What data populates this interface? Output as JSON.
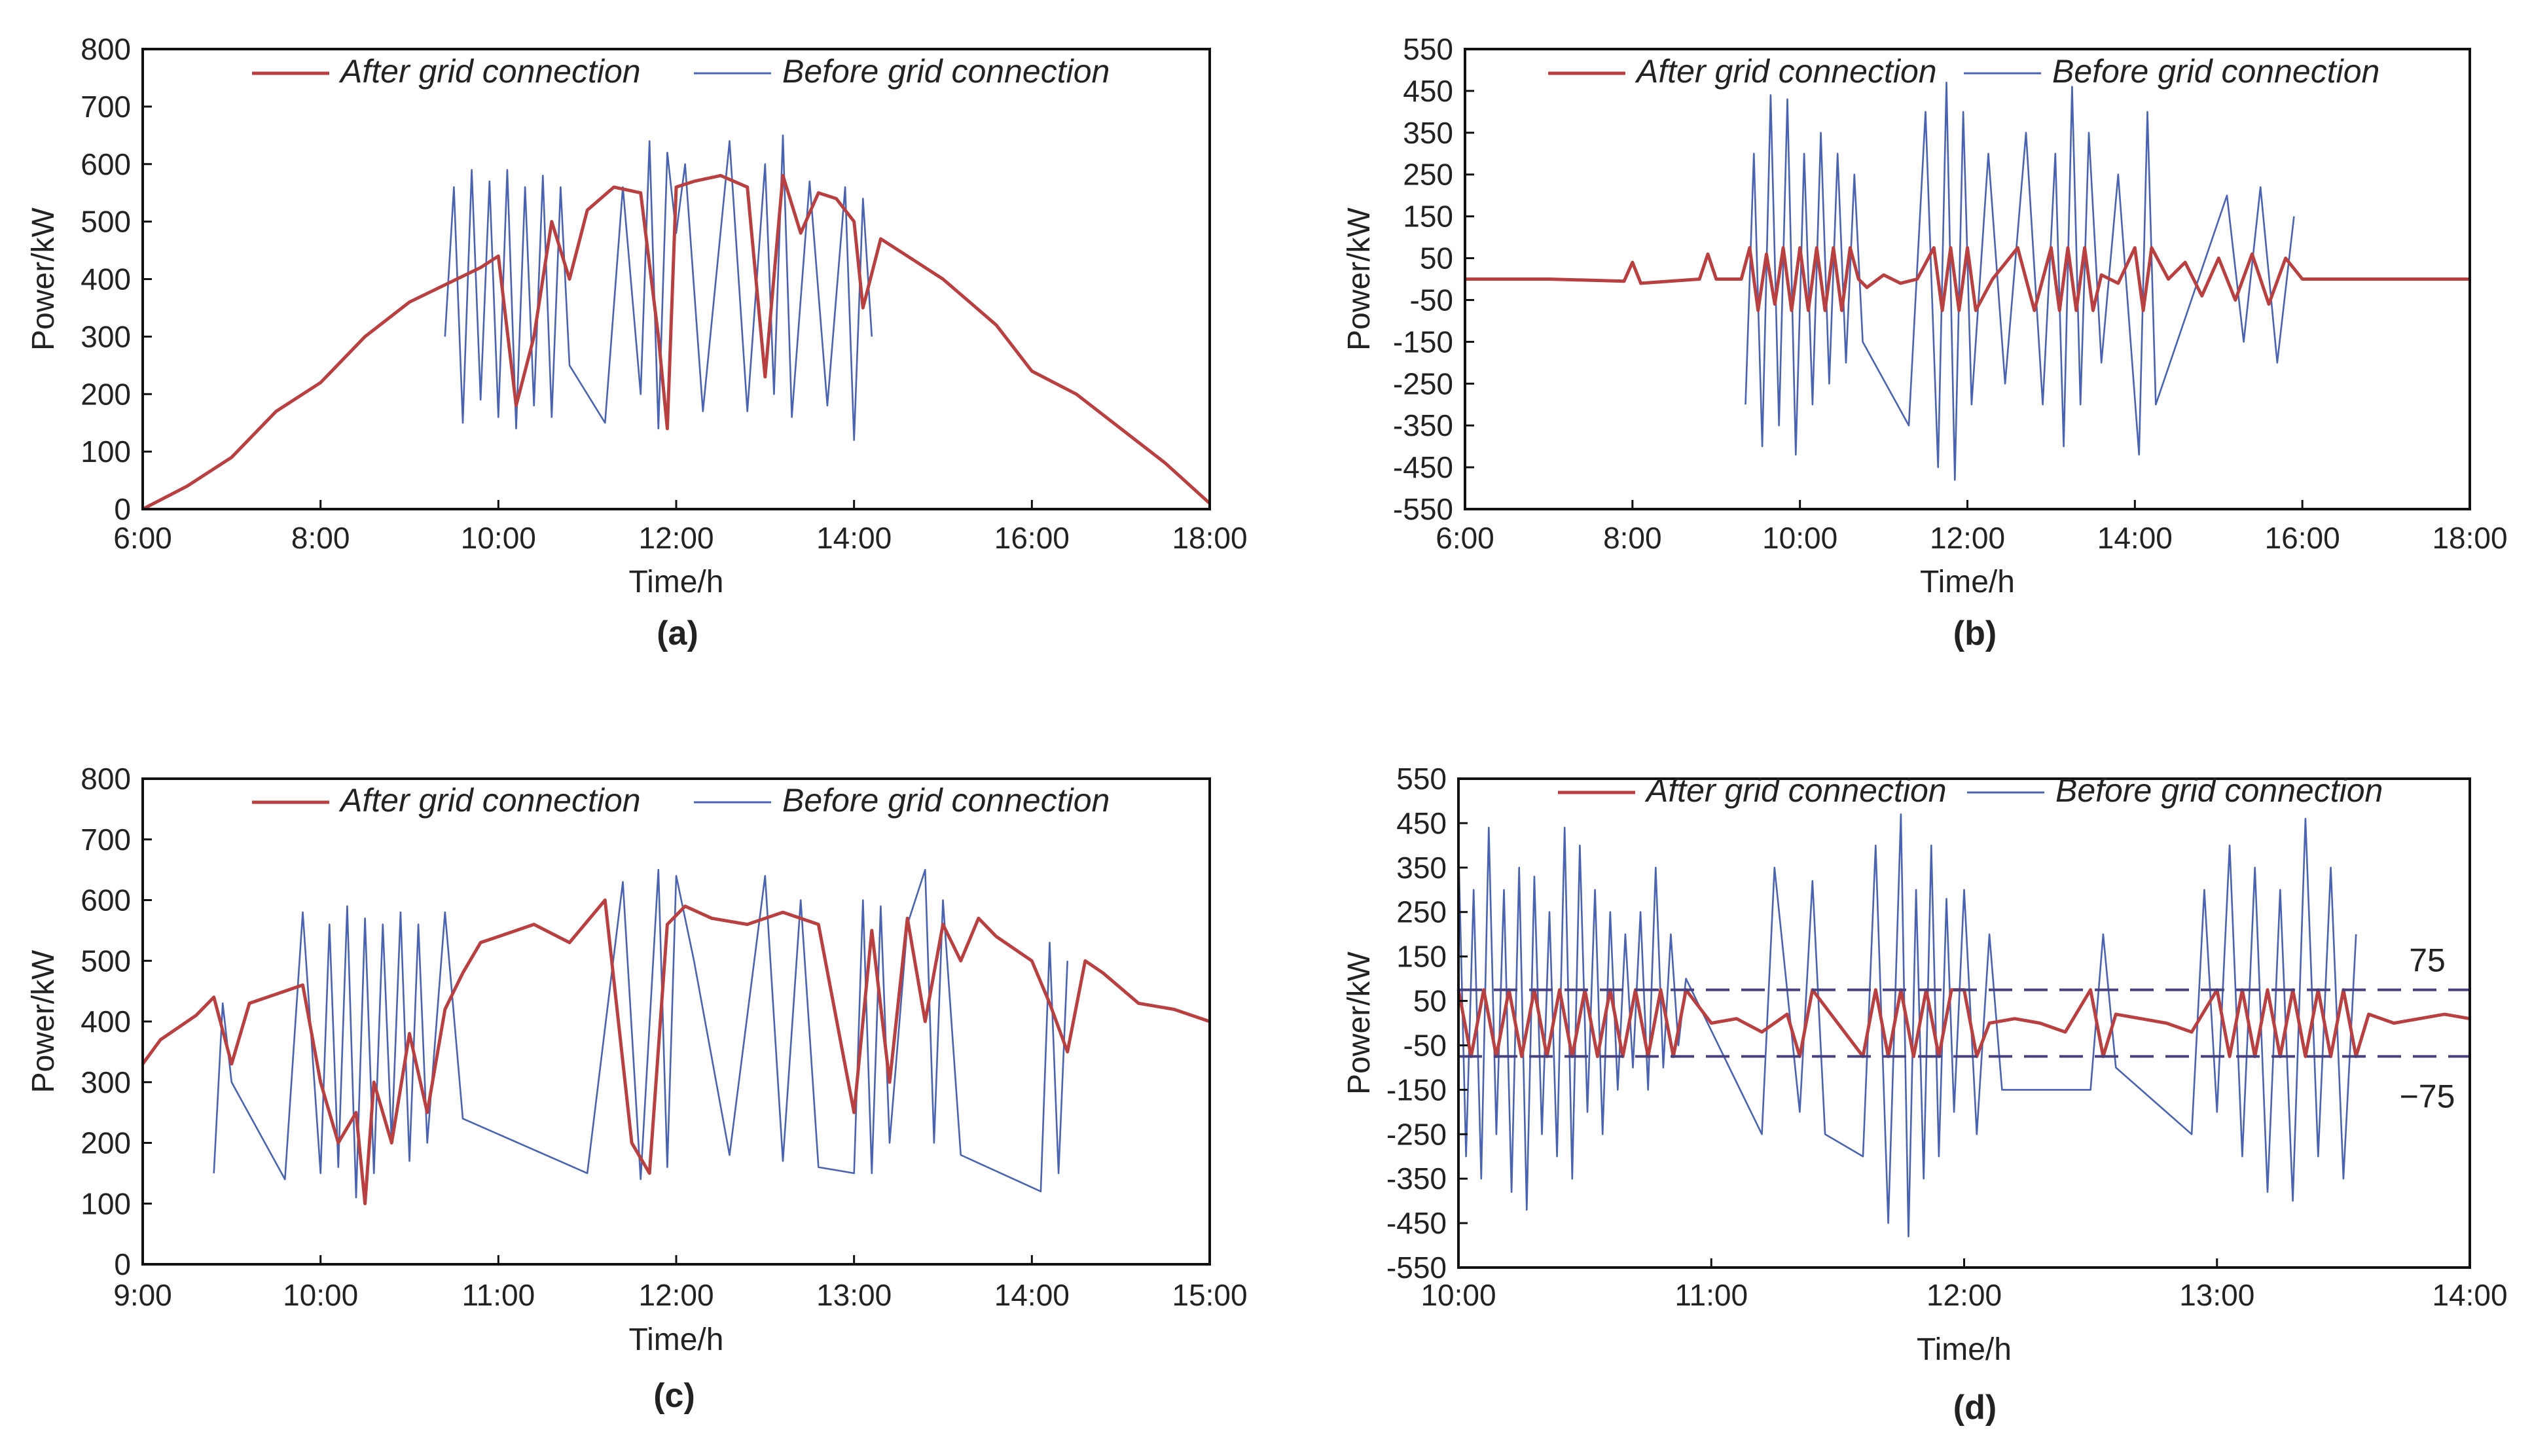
{
  "colors": {
    "after": "#b84040",
    "before": "#4a63b0",
    "reference": "#46417e",
    "axis": "#111111"
  },
  "chart_data": [
    {
      "panel_label": "(a)",
      "type": "line",
      "xlabel": "Time/h",
      "ylabel": "Power/kW",
      "x_range_hours": [
        6,
        18
      ],
      "xticks": [
        6,
        8,
        10,
        12,
        14,
        16,
        18
      ],
      "xtick_labels": [
        "6:00",
        "8:00",
        "10:00",
        "12:00",
        "14:00",
        "16:00",
        "18:00"
      ],
      "ylim": [
        0,
        800
      ],
      "yticks": [
        0,
        100,
        200,
        300,
        400,
        500,
        600,
        700,
        800
      ],
      "ytick_labels": [
        "0",
        "100",
        "200",
        "300",
        "400",
        "500",
        "600",
        "700",
        "800"
      ],
      "legend": [
        "After grid connection",
        "Before grid connection"
      ],
      "legend_position": "top",
      "series": [
        {
          "name": "After grid connection",
          "x": [
            6,
            6.5,
            7,
            7.5,
            8,
            8.5,
            9,
            9.4,
            9.8,
            10.0,
            10.2,
            10.4,
            10.6,
            10.8,
            11.0,
            11.3,
            11.6,
            11.8,
            11.9,
            12.0,
            12.2,
            12.5,
            12.8,
            13.0,
            13.2,
            13.4,
            13.6,
            13.8,
            14.0,
            14.1,
            14.3,
            14.6,
            15.0,
            15.3,
            15.6,
            16.0,
            16.5,
            17.0,
            17.5,
            18.0
          ],
          "values": [
            0,
            40,
            90,
            170,
            220,
            300,
            360,
            390,
            420,
            440,
            180,
            300,
            500,
            400,
            520,
            560,
            550,
            300,
            140,
            560,
            570,
            580,
            560,
            230,
            580,
            480,
            550,
            540,
            500,
            350,
            470,
            440,
            400,
            360,
            320,
            240,
            200,
            140,
            80,
            10
          ]
        },
        {
          "name": "Before grid connection",
          "x": [
            9.4,
            9.5,
            9.6,
            9.7,
            9.8,
            9.9,
            10.0,
            10.1,
            10.2,
            10.3,
            10.4,
            10.5,
            10.6,
            10.7,
            10.8,
            11.2,
            11.4,
            11.6,
            11.7,
            11.8,
            11.9,
            12.0,
            12.1,
            12.3,
            12.6,
            12.8,
            13.0,
            13.1,
            13.2,
            13.3,
            13.5,
            13.7,
            13.9,
            14.0,
            14.1,
            14.2
          ],
          "values": [
            300,
            560,
            150,
            590,
            190,
            570,
            160,
            590,
            140,
            560,
            180,
            580,
            160,
            560,
            250,
            150,
            560,
            200,
            640,
            140,
            620,
            480,
            600,
            170,
            640,
            170,
            600,
            200,
            650,
            160,
            570,
            180,
            560,
            120,
            540,
            300
          ]
        }
      ]
    },
    {
      "panel_label": "(b)",
      "type": "line",
      "xlabel": "Time/h",
      "ylabel": "Power/kW",
      "x_range_hours": [
        6,
        18
      ],
      "xticks": [
        6,
        8,
        10,
        12,
        14,
        16,
        18
      ],
      "xtick_labels": [
        "6:00",
        "8:00",
        "10:00",
        "12:00",
        "14:00",
        "16:00",
        "18:00"
      ],
      "ylim": [
        -550,
        550
      ],
      "yticks": [
        -550,
        -450,
        -350,
        -250,
        -150,
        -50,
        50,
        150,
        250,
        350,
        450,
        550
      ],
      "ytick_labels": [
        "-550",
        "-450",
        "-350",
        "-250",
        "-150",
        "-50",
        "50",
        "150",
        "250",
        "350",
        "450",
        "550"
      ],
      "legend": [
        "After grid connection",
        "Before grid connection"
      ],
      "legend_position": "top",
      "series": [
        {
          "name": "After grid connection",
          "x": [
            6,
            7,
            7.9,
            8.0,
            8.1,
            8.8,
            8.9,
            9.0,
            9.3,
            9.4,
            9.5,
            9.6,
            9.7,
            9.8,
            9.9,
            10.0,
            10.1,
            10.2,
            10.3,
            10.4,
            10.5,
            10.6,
            10.7,
            10.8,
            11.0,
            11.2,
            11.4,
            11.6,
            11.7,
            11.8,
            11.9,
            12.0,
            12.1,
            12.3,
            12.6,
            12.8,
            13.0,
            13.1,
            13.2,
            13.3,
            13.4,
            13.5,
            13.6,
            13.8,
            14.0,
            14.1,
            14.2,
            14.4,
            14.6,
            14.8,
            15.0,
            15.2,
            15.4,
            15.6,
            15.8,
            16.0,
            16.5,
            17,
            18
          ],
          "values": [
            0,
            0,
            -5,
            40,
            -10,
            0,
            60,
            0,
            0,
            75,
            -75,
            60,
            -60,
            75,
            -75,
            75,
            -75,
            75,
            -75,
            75,
            -75,
            75,
            0,
            -20,
            10,
            -10,
            0,
            75,
            -75,
            75,
            -75,
            75,
            -75,
            0,
            75,
            -75,
            75,
            -75,
            75,
            -75,
            75,
            -75,
            10,
            -10,
            75,
            -75,
            75,
            0,
            40,
            -40,
            50,
            -50,
            60,
            -60,
            50,
            0,
            0,
            0,
            0
          ]
        },
        {
          "name": "Before grid connection",
          "x": [
            9.35,
            9.45,
            9.55,
            9.65,
            9.75,
            9.85,
            9.95,
            10.05,
            10.15,
            10.25,
            10.35,
            10.45,
            10.55,
            10.65,
            10.75,
            11.3,
            11.5,
            11.65,
            11.75,
            11.85,
            11.95,
            12.05,
            12.25,
            12.45,
            12.7,
            12.9,
            13.05,
            13.15,
            13.25,
            13.35,
            13.45,
            13.6,
            13.8,
            14.05,
            14.15,
            14.25,
            15.1,
            15.3,
            15.5,
            15.7,
            15.9
          ],
          "values": [
            -300,
            300,
            -400,
            440,
            -350,
            430,
            -420,
            300,
            -300,
            350,
            -250,
            300,
            -200,
            250,
            -150,
            -350,
            400,
            -450,
            470,
            -480,
            400,
            -300,
            300,
            -250,
            350,
            -300,
            300,
            -400,
            460,
            -300,
            350,
            -200,
            250,
            -420,
            400,
            -300,
            200,
            -150,
            220,
            -200,
            150
          ]
        }
      ]
    },
    {
      "panel_label": "(c)",
      "type": "line",
      "xlabel": "Time/h",
      "ylabel": "Power/kW",
      "x_range_hours": [
        9,
        15
      ],
      "xticks": [
        9,
        10,
        11,
        12,
        13,
        14,
        15
      ],
      "xtick_labels": [
        "9:00",
        "10:00",
        "11:00",
        "12:00",
        "13:00",
        "14:00",
        "15:00"
      ],
      "ylim": [
        0,
        800
      ],
      "yticks": [
        0,
        100,
        200,
        300,
        400,
        500,
        600,
        700,
        800
      ],
      "ytick_labels": [
        "0",
        "100",
        "200",
        "300",
        "400",
        "500",
        "600",
        "700",
        "800"
      ],
      "legend": [
        "After grid connection",
        "Before grid connection"
      ],
      "legend_position": "top",
      "series": [
        {
          "name": "After grid connection",
          "x": [
            9.0,
            9.1,
            9.2,
            9.3,
            9.4,
            9.5,
            9.6,
            9.7,
            9.8,
            9.9,
            10.0,
            10.1,
            10.2,
            10.25,
            10.3,
            10.4,
            10.5,
            10.6,
            10.7,
            10.8,
            10.9,
            11.0,
            11.2,
            11.4,
            11.6,
            11.75,
            11.85,
            11.95,
            12.05,
            12.2,
            12.4,
            12.6,
            12.8,
            13.0,
            13.1,
            13.2,
            13.3,
            13.4,
            13.5,
            13.6,
            13.7,
            13.8,
            14.0,
            14.1,
            14.2,
            14.3,
            14.4,
            14.6,
            14.8,
            15.0
          ],
          "values": [
            330,
            370,
            390,
            410,
            440,
            330,
            430,
            440,
            450,
            460,
            300,
            200,
            250,
            100,
            300,
            200,
            380,
            250,
            420,
            480,
            530,
            540,
            560,
            530,
            600,
            200,
            150,
            560,
            590,
            570,
            560,
            580,
            560,
            250,
            550,
            300,
            570,
            400,
            560,
            500,
            570,
            540,
            500,
            430,
            350,
            500,
            480,
            430,
            420,
            400
          ]
        },
        {
          "name": "Before grid connection",
          "x": [
            9.4,
            9.45,
            9.5,
            9.8,
            9.9,
            10.0,
            10.05,
            10.1,
            10.15,
            10.2,
            10.25,
            10.3,
            10.35,
            10.4,
            10.45,
            10.5,
            10.55,
            10.6,
            10.7,
            10.8,
            11.5,
            11.7,
            11.8,
            11.9,
            11.95,
            12.0,
            12.1,
            12.3,
            12.5,
            12.6,
            12.7,
            12.8,
            13.0,
            13.05,
            13.1,
            13.15,
            13.2,
            13.3,
            13.4,
            13.45,
            13.5,
            13.6,
            14.05,
            14.1,
            14.15,
            14.2
          ],
          "values": [
            150,
            430,
            300,
            140,
            580,
            150,
            560,
            160,
            590,
            110,
            570,
            150,
            560,
            200,
            580,
            170,
            560,
            200,
            580,
            240,
            150,
            630,
            140,
            650,
            160,
            640,
            500,
            180,
            640,
            170,
            600,
            160,
            150,
            600,
            150,
            590,
            200,
            560,
            650,
            200,
            600,
            180,
            120,
            530,
            150,
            500
          ]
        }
      ]
    },
    {
      "panel_label": "(d)",
      "type": "line",
      "xlabel": "Time/h",
      "ylabel": "Power/kW",
      "x_range_hours": [
        10,
        14
      ],
      "xticks": [
        10,
        11,
        12,
        13,
        14
      ],
      "xtick_labels": [
        "10:00",
        "11:00",
        "12:00",
        "13:00",
        "14:00"
      ],
      "ylim": [
        -550,
        550
      ],
      "yticks": [
        -550,
        -450,
        -350,
        -250,
        -150,
        -50,
        50,
        150,
        250,
        350,
        450,
        550
      ],
      "ytick_labels": [
        "-550",
        "-450",
        "-350",
        "-250",
        "-150",
        "-50",
        "50",
        "150",
        "250",
        "350",
        "450",
        "550"
      ],
      "legend": [
        "After grid connection",
        "Before grid connection"
      ],
      "legend_position": "top",
      "reference_lines": [
        75,
        -75
      ],
      "reference_labels": [
        "75",
        "−75"
      ],
      "series": [
        {
          "name": "After grid connection",
          "x": [
            10.0,
            10.05,
            10.1,
            10.15,
            10.2,
            10.25,
            10.3,
            10.35,
            10.4,
            10.45,
            10.5,
            10.55,
            10.6,
            10.65,
            10.7,
            10.75,
            10.8,
            10.85,
            10.9,
            11.0,
            11.1,
            11.2,
            11.3,
            11.35,
            11.4,
            11.5,
            11.6,
            11.65,
            11.7,
            11.75,
            11.8,
            11.85,
            11.9,
            11.95,
            12.0,
            12.05,
            12.1,
            12.2,
            12.3,
            12.4,
            12.5,
            12.55,
            12.6,
            12.7,
            12.8,
            12.9,
            13.0,
            13.05,
            13.1,
            13.15,
            13.2,
            13.25,
            13.3,
            13.35,
            13.4,
            13.45,
            13.5,
            13.55,
            13.6,
            13.7,
            13.8,
            13.9,
            14.0
          ],
          "values": [
            75,
            -75,
            75,
            -75,
            75,
            -75,
            75,
            -75,
            75,
            -75,
            75,
            -75,
            75,
            -75,
            75,
            -75,
            75,
            -75,
            75,
            0,
            10,
            -20,
            20,
            -75,
            75,
            0,
            -75,
            75,
            -75,
            75,
            -75,
            75,
            -75,
            75,
            75,
            -75,
            0,
            10,
            0,
            -20,
            75,
            -75,
            20,
            10,
            0,
            -20,
            75,
            -75,
            75,
            -75,
            75,
            -75,
            75,
            -75,
            75,
            -75,
            75,
            -75,
            20,
            0,
            10,
            20,
            10
          ]
        },
        {
          "name": "Before grid connection",
          "x": [
            10.0,
            10.03,
            10.06,
            10.09,
            10.12,
            10.15,
            10.18,
            10.21,
            10.24,
            10.27,
            10.3,
            10.33,
            10.36,
            10.39,
            10.42,
            10.45,
            10.48,
            10.51,
            10.54,
            10.57,
            10.6,
            10.63,
            10.66,
            10.69,
            10.72,
            10.75,
            10.78,
            10.81,
            10.84,
            10.87,
            10.9,
            11.2,
            11.25,
            11.35,
            11.4,
            11.45,
            11.6,
            11.65,
            11.7,
            11.75,
            11.78,
            11.81,
            11.84,
            11.87,
            11.9,
            11.93,
            11.96,
            12.0,
            12.05,
            12.1,
            12.15,
            12.5,
            12.55,
            12.6,
            12.9,
            12.95,
            13.0,
            13.05,
            13.1,
            13.15,
            13.2,
            13.25,
            13.3,
            13.35,
            13.4,
            13.45,
            13.5,
            13.55
          ],
          "values": [
            400,
            -300,
            300,
            -350,
            440,
            -250,
            300,
            -380,
            350,
            -420,
            330,
            -250,
            250,
            -300,
            440,
            -350,
            400,
            -200,
            300,
            -250,
            250,
            -150,
            200,
            -100,
            250,
            -150,
            350,
            -100,
            200,
            -50,
            100,
            -250,
            350,
            -200,
            320,
            -250,
            -300,
            400,
            -450,
            470,
            -480,
            300,
            -350,
            400,
            -300,
            280,
            -200,
            300,
            -250,
            200,
            -150,
            -150,
            200,
            -100,
            -250,
            300,
            -200,
            400,
            -300,
            350,
            -380,
            300,
            -400,
            460,
            -300,
            350,
            -350,
            200
          ]
        }
      ]
    }
  ]
}
